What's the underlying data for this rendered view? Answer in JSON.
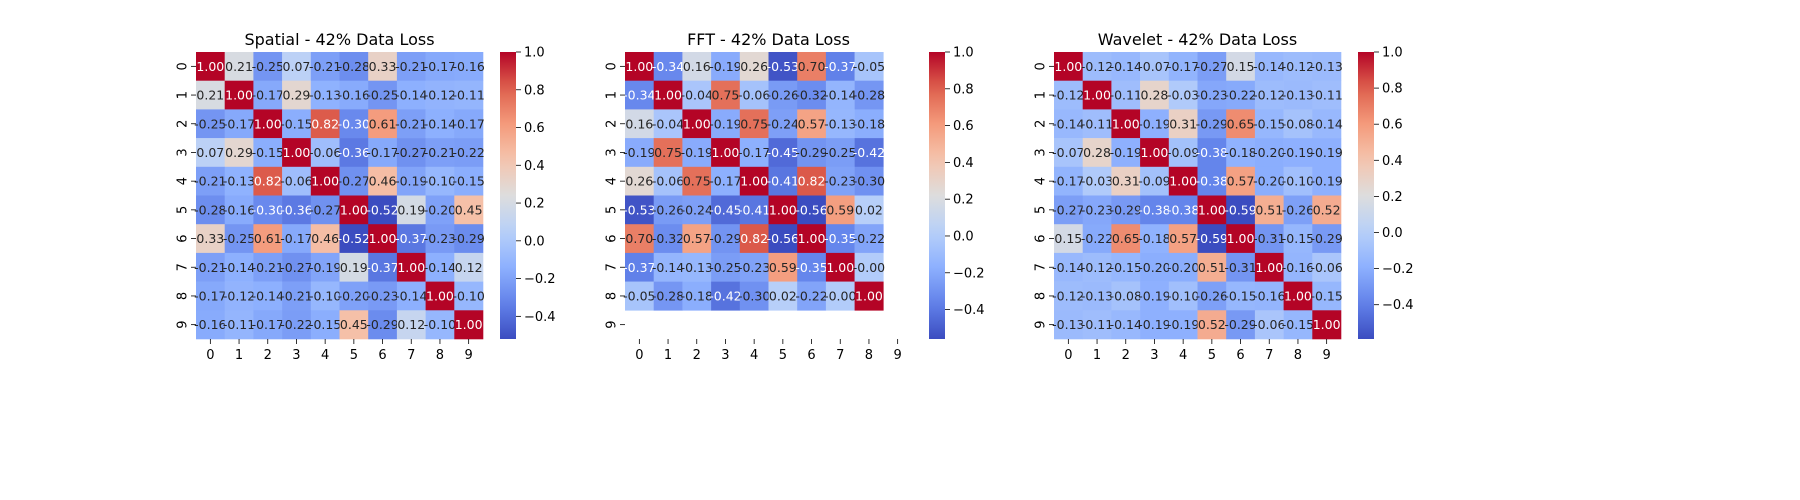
{
  "chart_data": [
    {
      "type": "heatmap",
      "title": "Spatial - 42% Data Loss",
      "x_ticks": [
        "0",
        "1",
        "2",
        "3",
        "4",
        "5",
        "6",
        "7",
        "8",
        "9"
      ],
      "y_ticks": [
        "0",
        "1",
        "2",
        "3",
        "4",
        "5",
        "6",
        "7",
        "8",
        "9"
      ],
      "colormap": "coolwarm",
      "vmin": -0.52,
      "vmax": 1.0,
      "colorbar_ticks": [
        -0.4,
        -0.2,
        0.0,
        0.2,
        0.4,
        0.6,
        0.8,
        1.0
      ],
      "colorbar_tick_labels": [
        "−0.4",
        "−0.2",
        "0.0",
        "0.2",
        "0.4",
        "0.6",
        "0.8",
        "1.0"
      ],
      "matrix": [
        [
          1.0,
          0.21,
          -0.25,
          0.07,
          -0.21,
          -0.28,
          0.33,
          -0.21,
          -0.17,
          -0.16
        ],
        [
          0.21,
          1.0,
          -0.17,
          0.29,
          -0.13,
          -0.16,
          -0.25,
          -0.14,
          -0.12,
          -0.11
        ],
        [
          -0.25,
          -0.17,
          1.0,
          -0.15,
          0.82,
          -0.3,
          0.61,
          -0.21,
          -0.14,
          -0.17
        ],
        [
          0.07,
          0.29,
          -0.15,
          1.0,
          -0.06,
          -0.36,
          -0.17,
          -0.27,
          -0.21,
          -0.22
        ],
        [
          -0.21,
          -0.13,
          0.82,
          -0.06,
          1.0,
          -0.27,
          0.46,
          -0.19,
          -0.1,
          -0.15
        ],
        [
          -0.28,
          -0.16,
          -0.3,
          -0.36,
          -0.27,
          1.0,
          -0.52,
          0.19,
          -0.2,
          0.45
        ],
        [
          0.33,
          -0.25,
          0.61,
          -0.17,
          0.46,
          -0.52,
          1.0,
          -0.37,
          -0.23,
          -0.29
        ],
        [
          -0.21,
          -0.14,
          -0.21,
          -0.27,
          -0.19,
          0.19,
          -0.37,
          1.0,
          -0.14,
          0.12
        ],
        [
          -0.17,
          -0.12,
          -0.14,
          -0.21,
          -0.1,
          -0.2,
          -0.23,
          -0.14,
          1.0,
          -0.1
        ],
        [
          -0.16,
          -0.11,
          -0.17,
          -0.22,
          -0.15,
          0.45,
          -0.29,
          0.12,
          -0.1,
          1.0
        ]
      ]
    },
    {
      "type": "heatmap",
      "title": "FFT - 42% Data Loss",
      "x_ticks": [
        "0",
        "1",
        "2",
        "3",
        "4",
        "5",
        "6",
        "7",
        "8",
        "9"
      ],
      "y_ticks": [
        "0",
        "1",
        "2",
        "3",
        "4",
        "5",
        "6",
        "7",
        "8",
        "9"
      ],
      "colormap": "coolwarm",
      "vmin": -0.56,
      "vmax": 1.0,
      "colorbar_ticks": [
        -0.4,
        -0.2,
        0.0,
        0.2,
        0.4,
        0.6,
        0.8,
        1.0
      ],
      "colorbar_tick_labels": [
        "−0.4",
        "−0.2",
        "0.0",
        "0.2",
        "0.4",
        "0.6",
        "0.8",
        "1.0"
      ],
      "matrix": [
        [
          1.0,
          -0.34,
          0.16,
          -0.19,
          0.26,
          -0.53,
          0.7,
          -0.37,
          -0.05,
          null
        ],
        [
          -0.34,
          1.0,
          -0.04,
          0.75,
          -0.06,
          -0.26,
          -0.32,
          -0.14,
          -0.28,
          null
        ],
        [
          0.16,
          -0.04,
          1.0,
          -0.19,
          0.75,
          -0.24,
          0.57,
          -0.13,
          -0.18,
          null
        ],
        [
          -0.19,
          0.75,
          -0.19,
          1.0,
          -0.17,
          -0.45,
          -0.29,
          -0.25,
          -0.42,
          null
        ],
        [
          0.26,
          -0.06,
          0.75,
          -0.17,
          1.0,
          -0.41,
          0.82,
          -0.23,
          -0.3,
          null
        ],
        [
          -0.53,
          -0.26,
          -0.24,
          -0.45,
          -0.41,
          1.0,
          -0.56,
          0.59,
          0.02,
          null
        ],
        [
          0.7,
          -0.32,
          0.57,
          -0.29,
          0.82,
          -0.56,
          1.0,
          -0.35,
          -0.22,
          null
        ],
        [
          -0.37,
          -0.14,
          -0.13,
          -0.25,
          -0.23,
          0.59,
          -0.35,
          1.0,
          -0.0,
          null
        ],
        [
          -0.05,
          -0.28,
          -0.18,
          -0.42,
          -0.3,
          0.02,
          -0.22,
          -0.0,
          1.0,
          null
        ],
        [
          null,
          null,
          null,
          null,
          null,
          null,
          null,
          null,
          null,
          null
        ]
      ]
    },
    {
      "type": "heatmap",
      "title": "Wavelet - 42% Data Loss",
      "x_ticks": [
        "0",
        "1",
        "2",
        "3",
        "4",
        "5",
        "6",
        "7",
        "8",
        "9"
      ],
      "y_ticks": [
        "0",
        "1",
        "2",
        "3",
        "4",
        "5",
        "6",
        "7",
        "8",
        "9"
      ],
      "colormap": "coolwarm",
      "vmin": -0.59,
      "vmax": 1.0,
      "colorbar_ticks": [
        -0.4,
        -0.2,
        0.0,
        0.2,
        0.4,
        0.6,
        0.8,
        1.0
      ],
      "colorbar_tick_labels": [
        "−0.4",
        "−0.2",
        "0.0",
        "0.2",
        "0.4",
        "0.6",
        "0.8",
        "1.0"
      ],
      "matrix": [
        [
          1.0,
          -0.12,
          -0.14,
          -0.07,
          -0.17,
          -0.27,
          0.15,
          -0.14,
          -0.12,
          -0.13
        ],
        [
          -0.12,
          1.0,
          -0.11,
          0.28,
          -0.03,
          -0.23,
          -0.22,
          -0.12,
          -0.13,
          -0.11
        ],
        [
          -0.14,
          -0.11,
          1.0,
          -0.19,
          0.31,
          -0.29,
          0.65,
          -0.15,
          -0.08,
          -0.14
        ],
        [
          -0.07,
          0.28,
          -0.19,
          1.0,
          -0.09,
          -0.38,
          -0.18,
          -0.2,
          -0.19,
          -0.19
        ],
        [
          -0.17,
          -0.03,
          0.31,
          -0.09,
          1.0,
          -0.38,
          0.57,
          -0.2,
          -0.1,
          -0.19
        ],
        [
          -0.27,
          -0.23,
          -0.29,
          -0.38,
          -0.38,
          1.0,
          -0.59,
          0.51,
          -0.26,
          0.52
        ],
        [
          0.15,
          -0.22,
          0.65,
          -0.18,
          0.57,
          -0.59,
          1.0,
          -0.31,
          -0.15,
          -0.29
        ],
        [
          -0.14,
          -0.12,
          -0.15,
          -0.2,
          -0.2,
          0.51,
          -0.31,
          1.0,
          -0.16,
          -0.06
        ],
        [
          -0.12,
          -0.13,
          -0.08,
          -0.19,
          -0.1,
          -0.26,
          -0.15,
          -0.16,
          1.0,
          -0.15
        ],
        [
          -0.13,
          -0.11,
          -0.14,
          -0.19,
          -0.19,
          0.52,
          -0.29,
          -0.06,
          -0.15,
          1.0
        ]
      ]
    }
  ]
}
